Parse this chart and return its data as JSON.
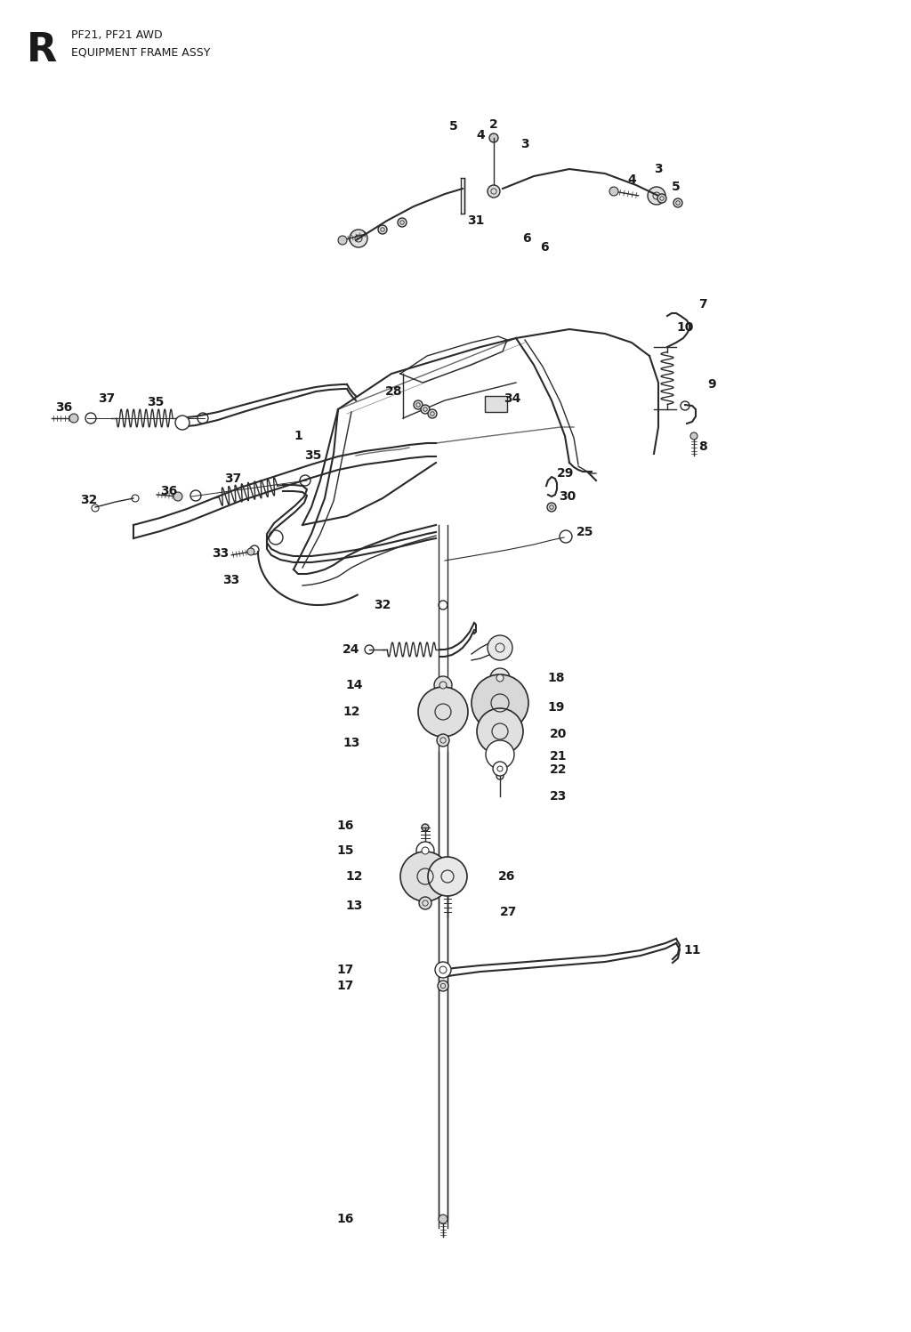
{
  "title_letter": "R",
  "title_line1": "PF21, PF21 AWD",
  "title_line2": "EQUIPMENT FRAME ASSY",
  "bg_color": "#ffffff",
  "line_color": "#2a2a2a",
  "text_color": "#1a1a1a",
  "label_fontsize": 10,
  "title_fontsize": 9
}
